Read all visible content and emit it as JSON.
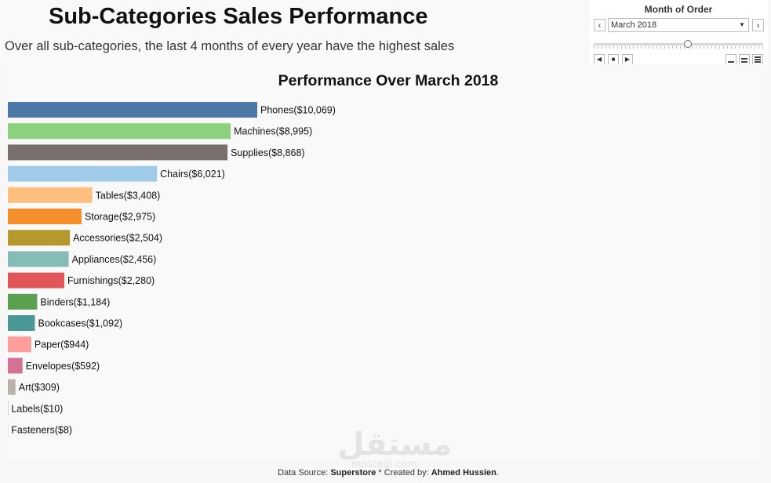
{
  "header": {
    "title": "Sub-Categories Sales Performance",
    "subtitle": "Over all sub-categories, the last 4 months of every year have the highest sales"
  },
  "filter": {
    "title": "Month of Order",
    "selected": "March 2018",
    "prev_icon": "chevron-left-icon",
    "next_icon": "chevron-right-icon",
    "slider_position": 0.55
  },
  "chart_data": {
    "type": "bar",
    "orientation": "horizontal",
    "title": "Performance Over March 2018",
    "categories": [
      "Phones",
      "Machines",
      "Supplies",
      "Chairs",
      "Tables",
      "Storage",
      "Accessories",
      "Appliances",
      "Furnishings",
      "Binders",
      "Bookcases",
      "Paper",
      "Envelopes",
      "Art",
      "Labels",
      "Fasteners"
    ],
    "values": [
      10069,
      8995,
      8868,
      6021,
      3408,
      2975,
      2504,
      2456,
      2280,
      1184,
      1092,
      944,
      592,
      309,
      10,
      8
    ],
    "data_labels": [
      "($10,069)",
      "($8,995)",
      "($8,868)",
      "($6,021)",
      "($3,408)",
      "($2,975)",
      "($2,504)",
      "($2,456)",
      "($2,280)",
      "($1,184)",
      "($1,092)",
      "($944)",
      "($592)",
      "($309)",
      "($10)",
      "($8)"
    ],
    "colors": [
      "#4e79a7",
      "#8cd17d",
      "#79706e",
      "#a0cbe8",
      "#ffbe7d",
      "#f28e2b",
      "#b6992d",
      "#86bcb6",
      "#e15759",
      "#59a14f",
      "#499894",
      "#ff9d9a",
      "#d37295",
      "#bab0ac",
      "#9d7660",
      "#d4a6c8"
    ],
    "xlabel": "",
    "ylabel": "",
    "grid": false,
    "legend": "none"
  },
  "footer": {
    "prefix": "Data Source: ",
    "source": "Superstore",
    "middle": " * Created by: ",
    "author": "Ahmed Hussien",
    "suffix": "."
  },
  "watermark": {
    "text_ar": "مستقل",
    "text_en": "mostaql.com"
  }
}
